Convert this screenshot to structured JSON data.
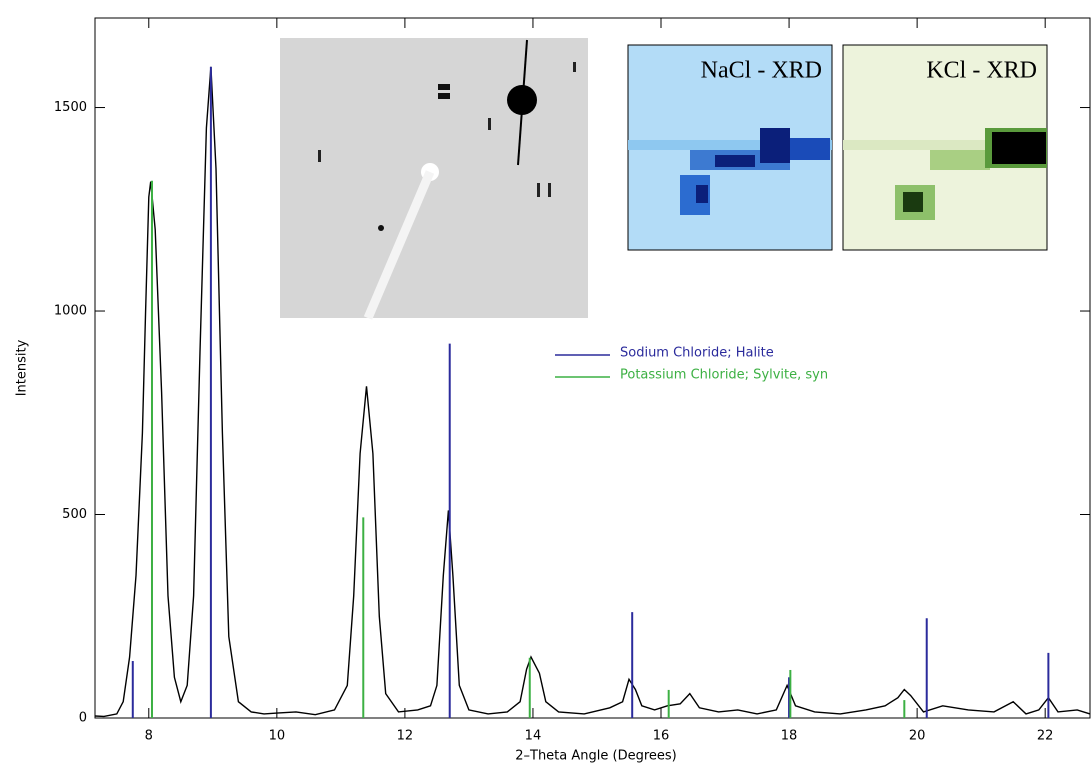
{
  "chart_data": {
    "type": "line",
    "xlabel": "2–Theta Angle (Degrees)",
    "ylabel": "Intensity",
    "xlim": [
      7.16,
      22.7
    ],
    "ylim": [
      0,
      1720
    ],
    "xticks": [
      8,
      10,
      12,
      14,
      16,
      18,
      20,
      22
    ],
    "yticks": [
      0,
      500,
      1000,
      1500
    ],
    "insets": [
      {
        "label": "NaCl - XRD"
      },
      {
        "label": "KCl - XRD"
      }
    ],
    "series": [
      {
        "style": "line",
        "color": "#000000",
        "x": [
          7.16,
          7.3,
          7.5,
          7.6,
          7.7,
          7.8,
          7.9,
          7.95,
          8.0,
          8.03,
          8.1,
          8.2,
          8.3,
          8.4,
          8.5,
          8.6,
          8.7,
          8.8,
          8.9,
          8.97,
          9.05,
          9.15,
          9.25,
          9.4,
          9.6,
          9.8,
          10.0,
          10.3,
          10.6,
          10.9,
          11.1,
          11.2,
          11.3,
          11.4,
          11.5,
          11.6,
          11.7,
          11.9,
          12.2,
          12.4,
          12.5,
          12.6,
          12.68,
          12.75,
          12.85,
          13.0,
          13.3,
          13.6,
          13.8,
          13.9,
          13.97,
          14.1,
          14.2,
          14.4,
          14.8,
          15.2,
          15.4,
          15.5,
          15.6,
          15.7,
          15.9,
          16.1,
          16.3,
          16.45,
          16.6,
          16.9,
          17.2,
          17.5,
          17.8,
          17.97,
          18.1,
          18.4,
          18.8,
          19.2,
          19.5,
          19.7,
          19.8,
          19.9,
          20.1,
          20.4,
          20.8,
          21.2,
          21.5,
          21.7,
          21.9,
          22.05,
          22.2,
          22.5,
          22.7
        ],
        "values": [
          5,
          4,
          10,
          40,
          150,
          350,
          700,
          1000,
          1280,
          1318,
          1200,
          800,
          300,
          100,
          40,
          80,
          300,
          900,
          1450,
          1600,
          1350,
          700,
          200,
          40,
          15,
          10,
          12,
          15,
          8,
          20,
          80,
          300,
          650,
          815,
          650,
          250,
          60,
          15,
          20,
          30,
          80,
          350,
          510,
          350,
          80,
          20,
          10,
          15,
          40,
          120,
          150,
          110,
          40,
          15,
          10,
          25,
          40,
          95,
          70,
          30,
          20,
          30,
          35,
          60,
          25,
          15,
          20,
          10,
          20,
          80,
          30,
          15,
          10,
          20,
          30,
          50,
          70,
          55,
          15,
          30,
          20,
          15,
          40,
          10,
          20,
          50,
          15,
          20,
          10
        ]
      },
      {
        "style": "stick",
        "name": "Sodium Chloride; Halite",
        "color": "#2b2b9c",
        "x": [
          7.75,
          8.97,
          12.7,
          15.55,
          18.0,
          20.15,
          22.05
        ],
        "values": [
          140,
          1600,
          920,
          260,
          100,
          245,
          160
        ]
      },
      {
        "style": "stick",
        "name": "Potassium Chloride; Sylvite, syn",
        "color": "#3cb043",
        "x": [
          8.05,
          11.35,
          13.95,
          16.12,
          18.02,
          19.8
        ],
        "values": [
          1320,
          493,
          148,
          69,
          118,
          44
        ]
      }
    ]
  }
}
